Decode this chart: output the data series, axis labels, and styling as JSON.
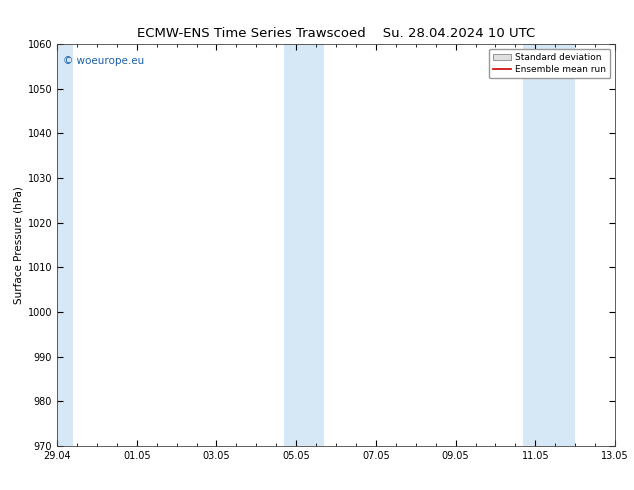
{
  "title_left": "ECMW-ENS Time Series Trawscoed",
  "title_right": "Su. 28.04.2024 10 UTC",
  "ylabel": "Surface Pressure (hPa)",
  "ylim": [
    970,
    1060
  ],
  "yticks": [
    970,
    980,
    990,
    1000,
    1010,
    1020,
    1030,
    1040,
    1050,
    1060
  ],
  "xtick_labels": [
    "29.04",
    "01.05",
    "03.05",
    "05.05",
    "07.05",
    "09.05",
    "11.05",
    "13.05"
  ],
  "xtick_positions": [
    0,
    2,
    4,
    6,
    8,
    10,
    12,
    14
  ],
  "shaded_bands": [
    {
      "x_start": 0.0,
      "x_end": 0.4
    },
    {
      "x_start": 5.7,
      "x_end": 6.7
    },
    {
      "x_start": 11.7,
      "x_end": 13.0
    }
  ],
  "shade_color": "#d6e8f5",
  "background_color": "#ffffff",
  "watermark_text": "© woeurope.eu",
  "watermark_color": "#1a5fa8",
  "legend_mean_color": "#cc0000",
  "title_fontsize": 9.5,
  "axis_label_fontsize": 7.5,
  "tick_fontsize": 7,
  "total_days": 14
}
